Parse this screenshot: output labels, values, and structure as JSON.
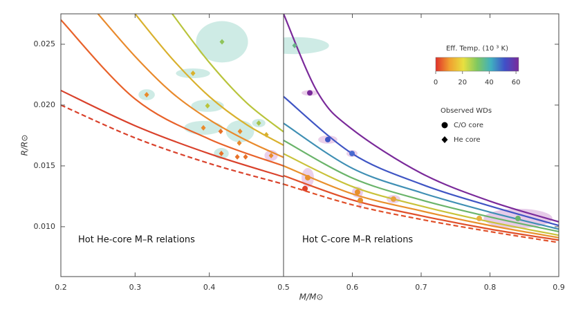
{
  "chart_data": [
    {
      "type": "line",
      "ylabel": "R/R⊙",
      "xlabel": "M/M⊙",
      "annotation": "Hot He-core M–R relations",
      "xlim": [
        0.2,
        0.5
      ],
      "ylim": [
        0.0059,
        0.0275
      ],
      "xticks": [
        0.2,
        0.3,
        0.4,
        0.5
      ],
      "yticks": [
        {
          "value": 0.01,
          "label": "0.010"
        },
        0.015,
        {
          "value": 0.02,
          "label": "0.020"
        },
        0.025
      ],
      "series": [
        {
          "color": "#d9412b",
          "dash": true,
          "x": [
            0.2,
            0.3,
            0.4,
            0.5
          ],
          "values": [
            0.02,
            0.0173,
            0.0152,
            0.0135
          ]
        },
        {
          "color": "#d9412b",
          "x": [
            0.2,
            0.3,
            0.4,
            0.5
          ],
          "values": [
            0.0212,
            0.0183,
            0.016,
            0.0141
          ]
        },
        {
          "color": "#e8622a",
          "x": [
            0.2,
            0.3,
            0.4,
            0.5
          ],
          "values": [
            0.027,
            0.0205,
            0.0172,
            0.015
          ]
        },
        {
          "color": "#e98a2c",
          "x": [
            0.25,
            0.3,
            0.35,
            0.4,
            0.45,
            0.5
          ],
          "values": [
            0.0275,
            0.024,
            0.021,
            0.0188,
            0.0171,
            0.0157
          ]
        },
        {
          "color": "#d9b12e",
          "x": [
            0.3,
            0.35,
            0.4,
            0.45,
            0.5
          ],
          "values": [
            0.0275,
            0.0238,
            0.0207,
            0.0184,
            0.0167
          ]
        },
        {
          "color": "#b9c43c",
          "x": [
            0.35,
            0.4,
            0.45,
            0.5
          ],
          "values": [
            0.0275,
            0.0235,
            0.0202,
            0.0178
          ]
        }
      ],
      "markers": [
        {
          "shape": "diamond",
          "x": [
            0.4171,
            0.378,
            0.3156,
            0.3976,
            0.392,
            0.4153,
            0.4414,
            0.4666,
            0.4768,
            0.4404,
            0.4162,
            0.4377,
            0.4488,
            0.4833
          ],
          "y": [
            0.0252,
            0.02261,
            0.02085,
            0.01994,
            0.01813,
            0.01784,
            0.01784,
            0.01852,
            0.01756,
            0.01688,
            0.01602,
            0.01574,
            0.01574,
            0.01585
          ],
          "xerr": [
            0.035,
            0.023,
            0.011,
            0.022,
            0.026,
            null,
            0.019,
            0.009,
            null,
            null,
            0.01,
            null,
            null,
            0.009
          ],
          "yerr": [
            0.0017,
            0.0004,
            0.00045,
            0.0005,
            0.00057,
            null,
            0.0009,
            0.00034,
            null,
            null,
            0.00045,
            null,
            null,
            0.00045
          ],
          "colors": [
            "#8fc45a",
            "#d9b12e",
            "#e98a2c",
            "#b9c43c",
            "#e98a2c",
            "#e8722a",
            "#e98a2c",
            "#a5c44a",
            "#d9b12e",
            "#e98a2c",
            "#e8722a",
            "#e8722a",
            "#e8722a",
            "#e98a2c"
          ],
          "ellipse_colors": [
            "#c6e8e1",
            "#c6e8e1",
            "#c6e8e1",
            "#c6e8e1",
            "#c6e8e1",
            null,
            "#c6e8e1",
            "#c6e8e1",
            null,
            null,
            "#c6e8e1",
            null,
            null,
            "#e8c8e6"
          ]
        }
      ]
    },
    {
      "type": "line",
      "annotation": "Hot C-core M–R relations",
      "xlim": [
        0.5,
        0.9
      ],
      "ylim": [
        0.0059,
        0.0275
      ],
      "xticks": [
        0.6,
        0.7,
        0.8,
        0.9
      ],
      "series": [
        {
          "color": "#7a2a9a",
          "x": [
            0.5,
            0.55,
            0.6,
            0.7,
            0.8,
            0.9
          ],
          "values": [
            0.0275,
            0.021,
            0.018,
            0.0144,
            0.0121,
            0.0104
          ]
        },
        {
          "color": "#3f55c4",
          "x": [
            0.5,
            0.6,
            0.7,
            0.8,
            0.9
          ],
          "values": [
            0.0207,
            0.016,
            0.0135,
            0.0117,
            0.0101
          ]
        },
        {
          "color": "#3f8fb4",
          "x": [
            0.5,
            0.6,
            0.7,
            0.8,
            0.9
          ],
          "values": [
            0.0185,
            0.0148,
            0.0128,
            0.0112,
            0.0098
          ]
        },
        {
          "color": "#6ab46a",
          "x": [
            0.5,
            0.6,
            0.7,
            0.8,
            0.9
          ],
          "values": [
            0.0171,
            0.014,
            0.0122,
            0.0108,
            0.0096
          ]
        },
        {
          "color": "#c9c23a",
          "x": [
            0.5,
            0.6,
            0.7,
            0.8,
            0.9
          ],
          "values": [
            0.016,
            0.0133,
            0.0117,
            0.0104,
            0.0093
          ]
        },
        {
          "color": "#e8902c",
          "x": [
            0.5,
            0.6,
            0.7,
            0.8,
            0.9
          ],
          "values": [
            0.015,
            0.0127,
            0.0113,
            0.0101,
            0.0091
          ]
        },
        {
          "color": "#e0502a",
          "x": [
            0.5,
            0.6,
            0.7,
            0.8,
            0.9
          ],
          "values": [
            0.0142,
            0.0122,
            0.0109,
            0.0098,
            0.0089
          ]
        },
        {
          "color": "#e0502a",
          "dash": true,
          "x": [
            0.5,
            0.6,
            0.7,
            0.8,
            0.9
          ],
          "values": [
            0.0135,
            0.0118,
            0.0106,
            0.0096,
            0.0087
          ]
        }
      ],
      "markers": [
        {
          "shape": "diamond",
          "x": [
            0.5161
          ],
          "y": [
            0.02489
          ],
          "xerr": [
            0.05
          ],
          "yerr": [
            0.0007
          ],
          "colors": [
            "#6ab48a"
          ],
          "ellipse_colors": [
            "#c6e8e1"
          ]
        },
        {
          "shape": "circle",
          "x": [
            0.5382,
            0.5643,
            0.5995,
            0.5352,
            0.5312,
            0.6075,
            0.6116,
            0.6598,
            0.7844,
            0.8407
          ],
          "y": [
            0.021,
            0.01716,
            0.01602,
            0.01403,
            0.01313,
            0.01284,
            0.01216,
            0.01227,
            0.01068,
            0.01068
          ],
          "xerr": [
            0.012,
            0.014,
            0.008,
            0.009,
            null,
            0.008,
            0.003,
            0.01,
            null,
            0.05
          ],
          "yerr": [
            0.00023,
            0.00034,
            0.00028,
            0.0008,
            null,
            0.00045,
            0.0007,
            0.00034,
            null,
            0.0008
          ],
          "colors": [
            "#7a2a9a",
            "#3f55c4",
            "#4a6ad0",
            "#e8902c",
            "#e0402a",
            "#e8902c",
            "#e8902c",
            "#e8a03c",
            "#e8b040",
            "#6ab46a"
          ],
          "ellipse_colors": [
            "#e8c8e6",
            "#e8c8e6",
            "#e8c8e6",
            "#e8c8e6",
            null,
            "#e8c8e6",
            "#e8c8e6",
            "#e8c8e6",
            null,
            "#e2c2e4"
          ]
        }
      ],
      "colorbar": {
        "title": "Eff. Temp. (10 ³ K)",
        "lim": [
          0,
          62
        ],
        "ticks": [
          0,
          20,
          40,
          60
        ],
        "colors": [
          "#e0302a",
          "#f0a030",
          "#e8e040",
          "#80c860",
          "#40b0c0",
          "#4050c8",
          "#7a2a9a"
        ]
      },
      "legend": {
        "title": "Observed WDs",
        "items": [
          {
            "name": "C/O core",
            "shape": "circle"
          },
          {
            "name": "He core",
            "shape": "diamond"
          }
        ]
      }
    }
  ]
}
